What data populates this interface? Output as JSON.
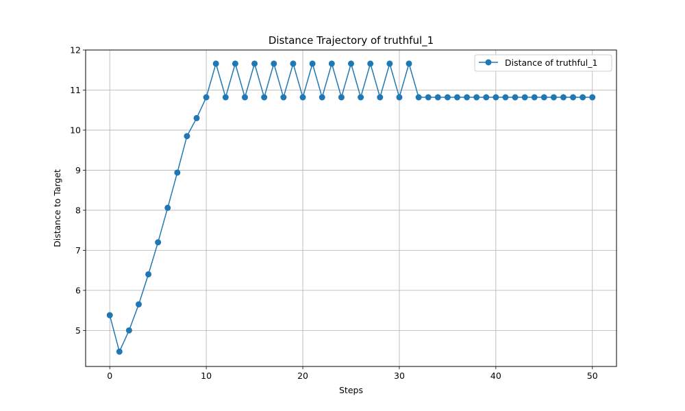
{
  "chart_data": {
    "type": "line",
    "title": "Distance Trajectory of truthful_1",
    "xlabel": "Steps",
    "ylabel": "Distance to Target",
    "xlim": [
      -2.5,
      52.5
    ],
    "ylim": [
      4.1,
      12.0
    ],
    "xticks": [
      0,
      10,
      20,
      30,
      40,
      50
    ],
    "yticks": [
      5,
      6,
      7,
      8,
      9,
      10,
      11,
      12
    ],
    "grid": true,
    "legend_position": "top-right",
    "series": [
      {
        "name": "Distance of truthful_1",
        "color": "#1f77b4",
        "marker": "circle",
        "x": [
          0,
          1,
          2,
          3,
          4,
          5,
          6,
          7,
          8,
          9,
          10,
          11,
          12,
          13,
          14,
          15,
          16,
          17,
          18,
          19,
          20,
          21,
          22,
          23,
          24,
          25,
          26,
          27,
          28,
          29,
          30,
          31,
          32,
          33,
          34,
          35,
          36,
          37,
          38,
          39,
          40,
          41,
          42,
          43,
          44,
          45,
          46,
          47,
          48,
          49,
          50
        ],
        "y": [
          5.38,
          4.47,
          5.0,
          5.65,
          6.4,
          7.2,
          8.06,
          8.94,
          9.85,
          10.3,
          10.82,
          11.66,
          10.82,
          11.66,
          10.82,
          11.66,
          10.82,
          11.66,
          10.82,
          11.66,
          10.82,
          11.66,
          10.82,
          11.66,
          10.82,
          11.66,
          10.82,
          11.66,
          10.82,
          11.66,
          10.82,
          11.66,
          10.82,
          10.82,
          10.82,
          10.82,
          10.82,
          10.82,
          10.82,
          10.82,
          10.82,
          10.82,
          10.82,
          10.82,
          10.82,
          10.82,
          10.82,
          10.82,
          10.82,
          10.82,
          10.82
        ]
      }
    ]
  }
}
